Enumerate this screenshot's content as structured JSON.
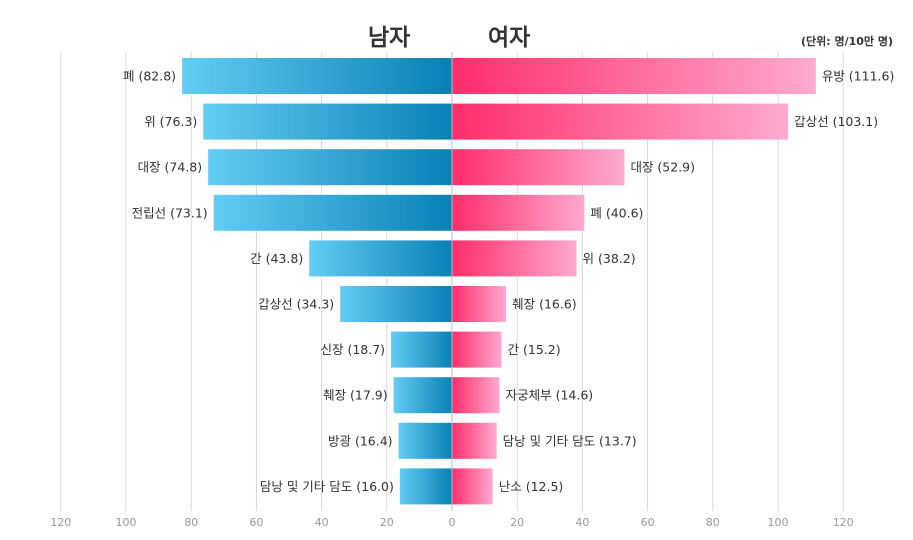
{
  "header": {
    "male_title": "남자",
    "female_title": "여자",
    "unit_note": "(단위: 명/10만 명)"
  },
  "colors": {
    "male_light": "#62cdf5",
    "male_dark": "#0a80b4",
    "female_dark": "#ff2d6b",
    "female_light": "#ffaad0",
    "grid": "#d9d9d9",
    "axis": "#999999",
    "label": "#333333"
  },
  "chart_data": {
    "type": "bar",
    "orientation": "horizontal-butterfly",
    "grid": true,
    "xlim": [
      -120,
      120
    ],
    "xticks": [
      120,
      100,
      80,
      60,
      40,
      20,
      0,
      20,
      40,
      60,
      80,
      100,
      120
    ],
    "series": [
      {
        "name": "남자",
        "side": "left",
        "categories": [
          "폐",
          "위",
          "대장",
          "전립선",
          "간",
          "갑상선",
          "신장",
          "췌장",
          "방광",
          "담낭 및 기타 담도"
        ],
        "values": [
          82.8,
          76.3,
          74.8,
          73.1,
          43.8,
          34.3,
          18.7,
          17.9,
          16.4,
          16.0
        ]
      },
      {
        "name": "여자",
        "side": "right",
        "categories": [
          "유방",
          "갑상선",
          "대장",
          "폐",
          "위",
          "췌장",
          "간",
          "자궁체부",
          "담낭 및 기타 담도",
          "난소"
        ],
        "values": [
          111.6,
          103.1,
          52.9,
          40.6,
          38.2,
          16.6,
          15.2,
          14.6,
          13.7,
          12.5
        ]
      }
    ]
  }
}
